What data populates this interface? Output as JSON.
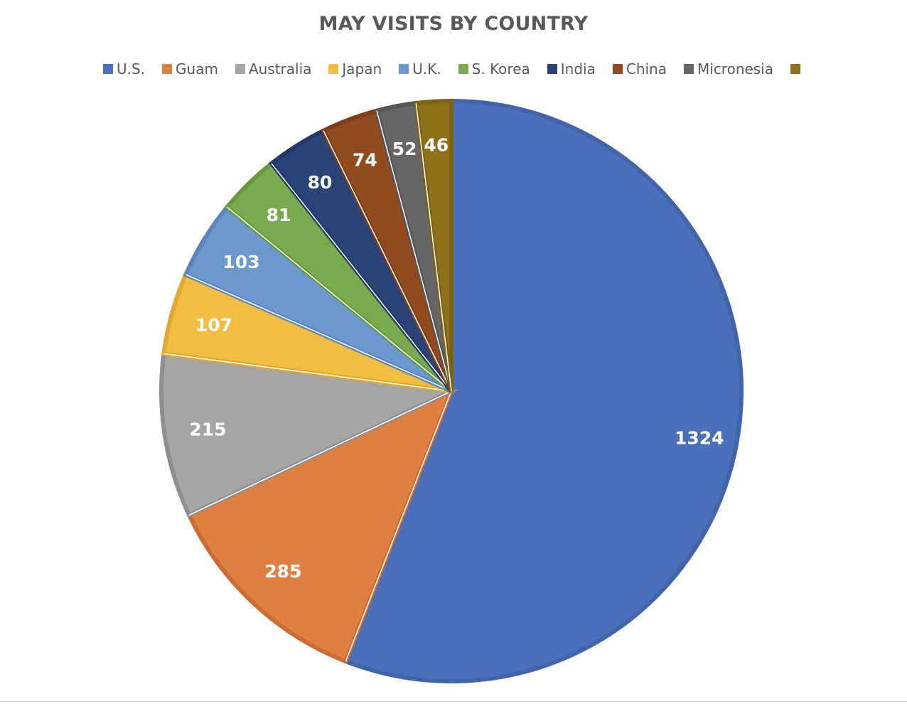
{
  "chart_data": {
    "type": "pie",
    "title": "MAY VISITS BY COUNTRY",
    "legend_position": "top",
    "categories": [
      "U.S.",
      "Guam",
      "Australia",
      "Japan",
      "U.K.",
      "S. Korea",
      "India",
      "China",
      "Micronesia",
      ""
    ],
    "values": [
      1324,
      285,
      215,
      107,
      103,
      81,
      80,
      74,
      52,
      46
    ],
    "colors": [
      "#4a70bb",
      "#df7f40",
      "#a5a5a5",
      "#f3bd40",
      "#6a98cf",
      "#79ab4e",
      "#2b4478",
      "#924a1e",
      "#666666",
      "#8f7119"
    ],
    "border_colors": [
      "#4164aa",
      "#c96d34",
      "#8f8f8f",
      "#e0a930",
      "#5a86bd",
      "#679a3e",
      "#22396a",
      "#7e3f17",
      "#555555",
      "#7c6213"
    ],
    "data_labels": [
      "1324",
      "285",
      "215",
      "107",
      "103",
      "81",
      "80",
      "74",
      "52",
      "46"
    ]
  }
}
